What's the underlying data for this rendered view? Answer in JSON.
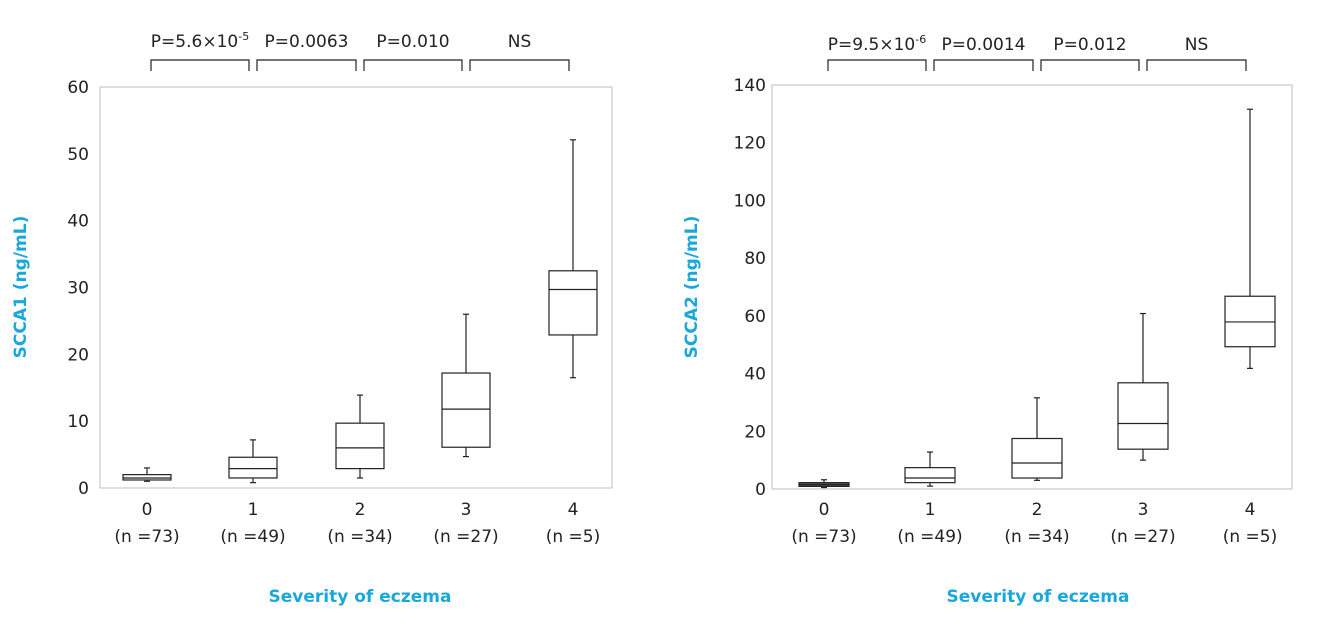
{
  "colors": {
    "accent": "#1aa7dc",
    "frame": "#bfbfbf",
    "ink": "#222222",
    "box_fill_min": "#555555"
  },
  "chart_data": [
    {
      "type": "box",
      "xlabel": "Severity of eczema",
      "ylabel": "SCCA1 (ng/mL)",
      "ylim": [
        0,
        60
      ],
      "yticks": [
        "0",
        "10",
        "20",
        "30",
        "40",
        "50",
        "60"
      ],
      "categories": [
        {
          "label": "0",
          "n": "(n =73)"
        },
        {
          "label": "1",
          "n": "(n =49)"
        },
        {
          "label": "2",
          "n": "(n =34)"
        },
        {
          "label": "3",
          "n": "(n =27)"
        },
        {
          "label": "4",
          "n": "(n =5)"
        }
      ],
      "boxes": [
        {
          "whisker_low": 1.0,
          "q1": 1.2,
          "median": 1.5,
          "q3": 2.0,
          "whisker_high": 3.0
        },
        {
          "whisker_low": 0.8,
          "q1": 1.5,
          "median": 2.9,
          "q3": 4.6,
          "whisker_high": 7.2
        },
        {
          "whisker_low": 1.5,
          "q1": 2.9,
          "median": 6.0,
          "q3": 9.7,
          "whisker_high": 13.9
        },
        {
          "whisker_low": 4.7,
          "q1": 6.1,
          "median": 11.8,
          "q3": 17.2,
          "whisker_high": 26.0
        },
        {
          "whisker_low": 16.5,
          "q1": 22.9,
          "median": 29.7,
          "q3": 32.5,
          "whisker_high": 52.1
        }
      ],
      "comparisons": [
        {
          "from": 0,
          "to": 1,
          "text": "P=5.6×10",
          "sup": "-5"
        },
        {
          "from": 1,
          "to": 2,
          "text": "P=0.0063",
          "sup": ""
        },
        {
          "from": 2,
          "to": 3,
          "text": "P=0.010",
          "sup": ""
        },
        {
          "from": 3,
          "to": 4,
          "text": "NS",
          "sup": ""
        }
      ]
    },
    {
      "type": "box",
      "xlabel": "Severity of eczema",
      "ylabel": "SCCA2 (ng/mL)",
      "ylim": [
        0,
        140
      ],
      "yticks": [
        "0",
        "20",
        "40",
        "60",
        "80",
        "100",
        "120",
        "140"
      ],
      "categories": [
        {
          "label": "0",
          "n": "(n =73)"
        },
        {
          "label": "1",
          "n": "(n =49)"
        },
        {
          "label": "2",
          "n": "(n =34)"
        },
        {
          "label": "3",
          "n": "(n =27)"
        },
        {
          "label": "4",
          "n": "(n =5)"
        }
      ],
      "boxes": [
        {
          "whisker_low": 0.5,
          "q1": 0.9,
          "median": 1.5,
          "q3": 2.2,
          "whisker_high": 3.2
        },
        {
          "whisker_low": 1.0,
          "q1": 2.2,
          "median": 3.8,
          "q3": 7.4,
          "whisker_high": 12.8
        },
        {
          "whisker_low": 3.0,
          "q1": 3.8,
          "median": 9.0,
          "q3": 17.5,
          "whisker_high": 31.6
        },
        {
          "whisker_low": 10.0,
          "q1": 13.8,
          "median": 22.7,
          "q3": 36.8,
          "whisker_high": 60.8
        },
        {
          "whisker_low": 41.8,
          "q1": 49.3,
          "median": 57.9,
          "q3": 66.8,
          "whisker_high": 131.6
        }
      ],
      "comparisons": [
        {
          "from": 0,
          "to": 1,
          "text": "P=9.5×10",
          "sup": "-6"
        },
        {
          "from": 1,
          "to": 2,
          "text": "P=0.0014",
          "sup": ""
        },
        {
          "from": 2,
          "to": 3,
          "text": "P=0.012",
          "sup": ""
        },
        {
          "from": 3,
          "to": 4,
          "text": "NS",
          "sup": ""
        }
      ]
    }
  ]
}
